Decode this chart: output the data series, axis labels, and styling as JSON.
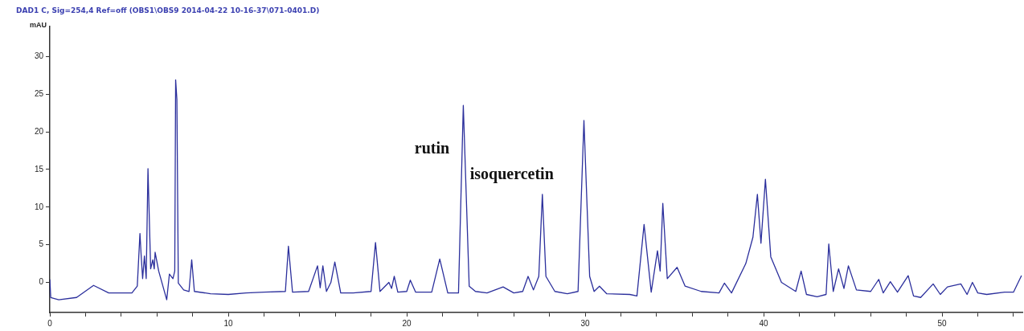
{
  "chart_data": {
    "type": "line",
    "title": "DAD1 C, Sig=254,4 Ref=off (OBS1\\OBS9 2014-04-22 10-16-37\\071-0401.D)",
    "ylabel": "mAU",
    "annotations": [
      "rutin",
      "isoquercetin"
    ],
    "series": [
      {
        "color": "#2b2f9c",
        "x": [
          0,
          0.05,
          0.5,
          1.5,
          2.45,
          3.3,
          4.6,
          4.9,
          5.05,
          5.12,
          5.2,
          5.3,
          5.4,
          5.5,
          5.58,
          5.65,
          5.77,
          5.85,
          5.9,
          6.1,
          6.55,
          6.7,
          6.9,
          7.0,
          7.05,
          7.12,
          7.2,
          7.5,
          7.8,
          7.95,
          8.1,
          9,
          10,
          11,
          12,
          13.2,
          13.37,
          13.6,
          14.5,
          15.0,
          15.15,
          15.3,
          15.5,
          15.75,
          15.97,
          16.3,
          17,
          18.0,
          18.25,
          18.5,
          19.0,
          19.15,
          19.3,
          19.5,
          20.0,
          20.2,
          20.5,
          21.4,
          21.85,
          22.3,
          22.9,
          23.17,
          23.5,
          23.85,
          24.5,
          25.4,
          26.0,
          26.5,
          26.8,
          27.1,
          27.4,
          27.6,
          27.8,
          28.3,
          29.0,
          29.6,
          29.93,
          30.25,
          30.5,
          30.8,
          31.2,
          32.5,
          32.9,
          33.3,
          33.7,
          34.05,
          34.2,
          34.35,
          34.6,
          35.15,
          35.6,
          36.5,
          37.5,
          37.8,
          38.2,
          39.0,
          39.4,
          39.65,
          39.85,
          40.1,
          40.4,
          41.0,
          41.8,
          42.1,
          42.4,
          43.0,
          43.5,
          43.65,
          43.9,
          44.2,
          44.5,
          44.75,
          45.2,
          46.0,
          46.45,
          46.7,
          47.1,
          47.5,
          48.1,
          48.4,
          48.8,
          49.5,
          49.9,
          50.3,
          51.05,
          51.4,
          51.7,
          52.0,
          52.5,
          53.5,
          54.0,
          54.45
        ],
        "values": [
          0.4,
          -2,
          -2.3,
          -2,
          -0.4,
          -1.4,
          -1.4,
          -0.5,
          6.5,
          3.5,
          0.5,
          3.5,
          0.5,
          15.1,
          8,
          1.8,
          3,
          1.8,
          4,
          1.5,
          -2.3,
          1.1,
          0.5,
          1.5,
          26.9,
          24.3,
          -0.1,
          -1,
          -1.2,
          3.0,
          -1.2,
          -1.5,
          -1.6,
          -1.4,
          -1.3,
          -1.2,
          4.8,
          -1.3,
          -1.2,
          2.2,
          -0.7,
          2.2,
          -1.2,
          0,
          2.7,
          -1.4,
          -1.4,
          -1.2,
          5.3,
          -1.2,
          0,
          -0.8,
          0.8,
          -1.3,
          -1.2,
          0.3,
          -1.3,
          -1.3,
          3.1,
          -1.4,
          -1.4,
          23.5,
          -0.5,
          -1.2,
          -1.4,
          -0.6,
          -1.4,
          -1.2,
          0.8,
          -1.0,
          0.8,
          11.7,
          0.8,
          -1.2,
          -1.5,
          -1.2,
          21.5,
          0.8,
          -1.2,
          -0.5,
          -1.5,
          -1.6,
          -1.8,
          7.7,
          -1.3,
          4.2,
          1.5,
          10.5,
          0.5,
          2.0,
          -0.5,
          -1.2,
          -1.4,
          -0.1,
          -1.4,
          2.5,
          6,
          11.7,
          5.2,
          13.7,
          3.4,
          0,
          -1.2,
          1.5,
          -1.6,
          -1.9,
          -1.6,
          5.1,
          -1.2,
          1.8,
          -0.8,
          2.2,
          -1,
          -1.2,
          0.4,
          -1.4,
          0.1,
          -1.3,
          0.9,
          -1.8,
          -2,
          -0.2,
          -1.6,
          -0.6,
          -0.2,
          -1.6,
          0,
          -1.4,
          -1.6,
          -1.3,
          -1.3,
          0.9
        ]
      }
    ],
    "xlim": [
      0,
      54.5
    ],
    "ylim": [
      -4,
      34
    ],
    "xticks": [
      0,
      {
        "value": 2,
        "label": null
      },
      {
        "value": 4,
        "label": null
      },
      {
        "value": 6,
        "label": null
      },
      {
        "value": 8,
        "label": null
      },
      10,
      {
        "value": 12,
        "label": null
      },
      {
        "value": 14,
        "label": null
      },
      {
        "value": 16,
        "label": null
      },
      {
        "value": 18,
        "label": null
      },
      20,
      {
        "value": 22,
        "label": null
      },
      {
        "value": 24,
        "label": null
      },
      {
        "value": 26,
        "label": null
      },
      {
        "value": 28,
        "label": null
      },
      30,
      {
        "value": 32,
        "label": null
      },
      {
        "value": 34,
        "label": null
      },
      {
        "value": 36,
        "label": null
      },
      {
        "value": 38,
        "label": null
      },
      40,
      {
        "value": 42,
        "label": null
      },
      {
        "value": 44,
        "label": null
      },
      {
        "value": 46,
        "label": null
      },
      {
        "value": 48,
        "label": null
      },
      50,
      {
        "value": 52,
        "label": null
      },
      {
        "value": 54,
        "label": null
      }
    ],
    "yticks": [
      0,
      5,
      10,
      15,
      20,
      25,
      30
    ],
    "grid": false,
    "legend": false,
    "marker": "none",
    "line_style": "solid"
  }
}
